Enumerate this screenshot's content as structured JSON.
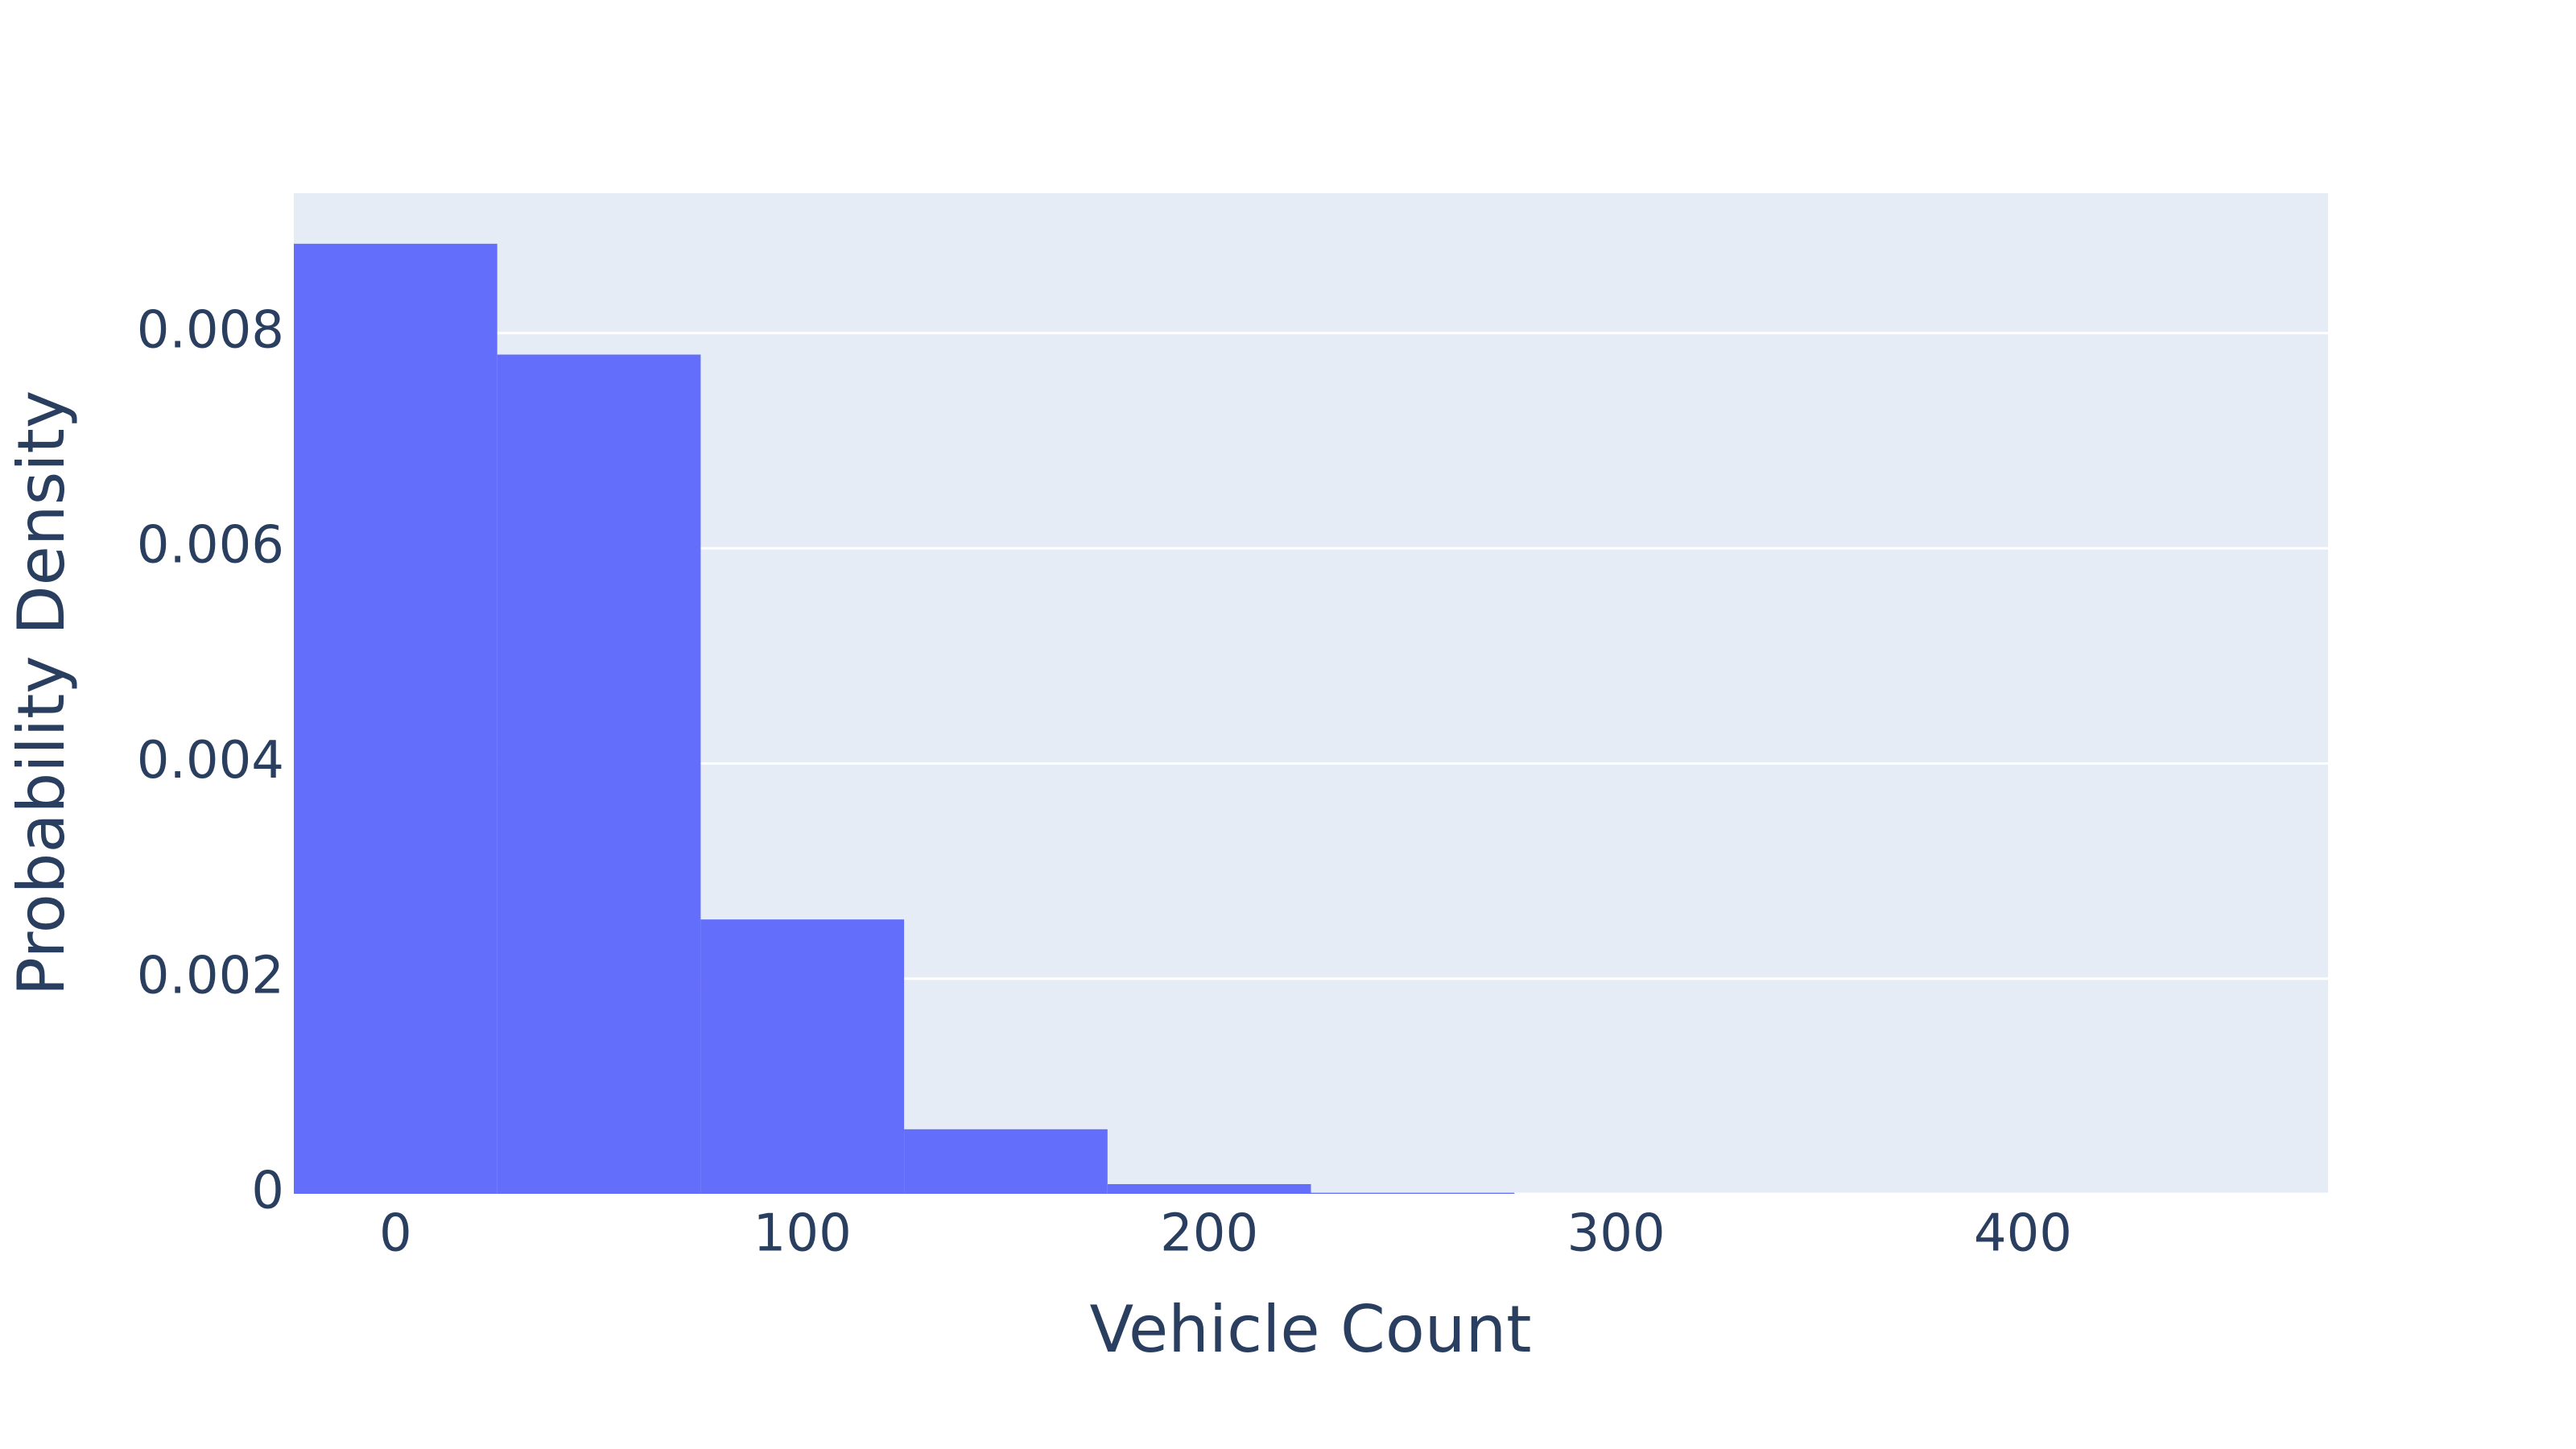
{
  "chart_data": {
    "type": "histogram",
    "x_label": "Vehicle Count",
    "y_label": "Probability Density",
    "bins": [
      -25,
      25,
      75,
      125,
      175,
      225,
      275,
      325,
      375,
      425,
      475
    ],
    "values": [
      0.00883,
      0.0078,
      0.00255,
      0.0006,
      9e-05,
      1e-05,
      0,
      0,
      0,
      0
    ],
    "color": "#636efa",
    "xlim": [
      -25,
      475
    ],
    "xticks": [
      0,
      100,
      200,
      300,
      400
    ],
    "ylim": [
      0,
      0.0093
    ],
    "yticks": [
      0,
      0.002,
      0.004,
      0.006,
      0.008
    ],
    "grid": true
  }
}
